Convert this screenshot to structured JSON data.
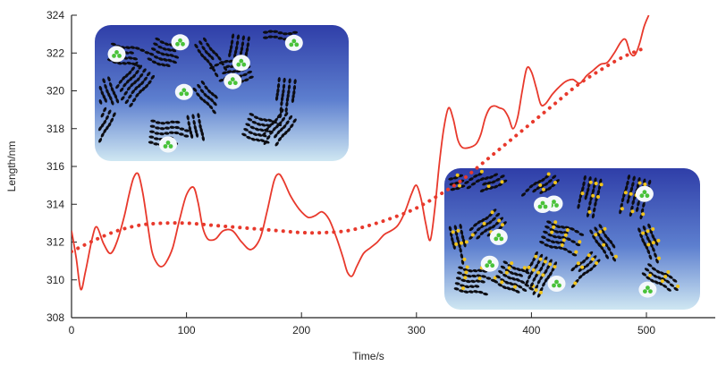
{
  "chart_data": {
    "type": "line",
    "xlabel": "Time/s",
    "ylabel": "Length/nm",
    "xlim": [
      0,
      560
    ],
    "ylim": [
      308,
      324
    ],
    "xticks": [
      0,
      100,
      200,
      300,
      400,
      500
    ],
    "yticks": [
      308,
      310,
      312,
      314,
      316,
      318,
      320,
      322,
      324
    ],
    "grid": false,
    "legend": "none",
    "series": [
      {
        "style": "solid",
        "color": "#e8392c",
        "x": [
          0,
          4,
          8,
          12,
          18,
          22,
          28,
          34,
          40,
          46,
          50,
          54,
          58,
          62,
          66,
          70,
          74,
          78,
          82,
          88,
          94,
          100,
          106,
          110,
          114,
          118,
          122,
          126,
          132,
          140,
          148,
          156,
          164,
          170,
          176,
          180,
          184,
          190,
          196,
          200,
          206,
          212,
          218,
          224,
          230,
          236,
          240,
          244,
          248,
          254,
          260,
          266,
          272,
          278,
          284,
          290,
          296,
          300,
          304,
          308,
          312,
          316,
          320,
          324,
          328,
          332,
          336,
          340,
          346,
          352,
          356,
          360,
          364,
          368,
          372,
          376,
          380,
          384,
          388,
          392,
          396,
          400,
          404,
          408,
          412,
          418,
          424,
          430,
          436,
          442,
          448,
          454,
          460,
          466,
          472,
          478,
          482,
          486,
          490,
          494,
          498,
          502
        ],
        "y": [
          312.6,
          311.2,
          309.5,
          310.4,
          312.2,
          312.8,
          311.9,
          311.4,
          312.1,
          313.4,
          314.5,
          315.4,
          315.6,
          314.6,
          313.0,
          311.5,
          310.9,
          310.7,
          310.9,
          311.7,
          313.2,
          314.5,
          314.9,
          314.1,
          312.8,
          312.2,
          312.1,
          312.2,
          312.6,
          312.6,
          312.0,
          311.6,
          312.2,
          313.6,
          315.2,
          315.6,
          315.3,
          314.5,
          313.9,
          313.6,
          313.3,
          313.4,
          313.6,
          313.2,
          312.3,
          311.2,
          310.4,
          310.2,
          310.7,
          311.4,
          311.7,
          312.0,
          312.4,
          312.6,
          312.9,
          313.6,
          314.6,
          315.0,
          314.3,
          313.0,
          312.1,
          313.8,
          316.2,
          318.1,
          319.1,
          318.5,
          317.4,
          317.0,
          317.0,
          317.2,
          317.7,
          318.6,
          319.1,
          319.2,
          319.1,
          319.0,
          318.6,
          318.0,
          318.6,
          320.0,
          321.2,
          321.0,
          320.2,
          319.3,
          319.3,
          319.8,
          320.2,
          320.5,
          320.6,
          320.4,
          320.8,
          321.1,
          321.4,
          321.5,
          322.0,
          322.6,
          322.7,
          322.0,
          321.9,
          322.5,
          323.4,
          324.0
        ]
      },
      {
        "style": "dotted",
        "color": "#e8392c",
        "x": [
          0,
          20,
          40,
          60,
          80,
          100,
          120,
          140,
          160,
          180,
          200,
          220,
          240,
          260,
          280,
          300,
          320,
          340,
          360,
          380,
          400,
          420,
          440,
          460,
          480,
          500
        ],
        "y": [
          311.5,
          312.1,
          312.6,
          312.9,
          313.0,
          313.0,
          312.9,
          312.8,
          312.7,
          312.6,
          312.5,
          312.5,
          312.6,
          312.9,
          313.3,
          313.8,
          314.5,
          315.3,
          316.3,
          317.3,
          318.3,
          319.3,
          320.3,
          321.1,
          321.8,
          322.3
        ]
      }
    ]
  }
}
